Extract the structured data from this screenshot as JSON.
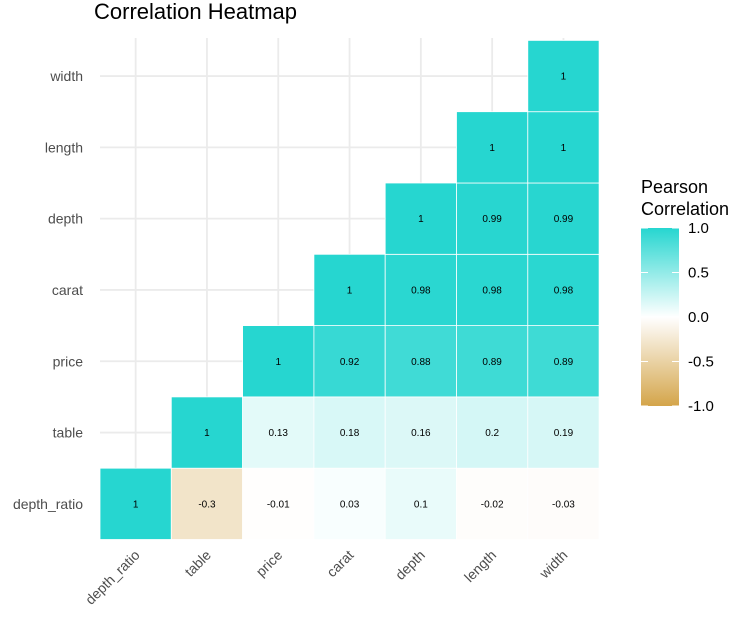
{
  "chart_data": {
    "type": "heatmap",
    "title": "Correlation Heatmap",
    "xlabel": "",
    "ylabel": "",
    "variables": [
      "depth_ratio",
      "table",
      "price",
      "carat",
      "depth",
      "length",
      "width"
    ],
    "x_categories": [
      "depth_ratio",
      "table",
      "price",
      "carat",
      "depth",
      "length",
      "width"
    ],
    "y_categories": [
      "depth_ratio",
      "table",
      "price",
      "carat",
      "depth",
      "length",
      "width"
    ],
    "matrix_layout": "lower-left triangle",
    "cells": [
      {
        "x": "depth_ratio",
        "y": "depth_ratio",
        "value": 1,
        "label": "1"
      },
      {
        "x": "table",
        "y": "depth_ratio",
        "value": -0.3,
        "label": "-0.3"
      },
      {
        "x": "price",
        "y": "depth_ratio",
        "value": -0.01,
        "label": "-0.01"
      },
      {
        "x": "carat",
        "y": "depth_ratio",
        "value": 0.03,
        "label": "0.03"
      },
      {
        "x": "depth",
        "y": "depth_ratio",
        "value": 0.1,
        "label": "0.1"
      },
      {
        "x": "length",
        "y": "depth_ratio",
        "value": -0.02,
        "label": "-0.02"
      },
      {
        "x": "width",
        "y": "depth_ratio",
        "value": -0.03,
        "label": "-0.03"
      },
      {
        "x": "table",
        "y": "table",
        "value": 1,
        "label": "1"
      },
      {
        "x": "price",
        "y": "table",
        "value": 0.13,
        "label": "0.13"
      },
      {
        "x": "carat",
        "y": "table",
        "value": 0.18,
        "label": "0.18"
      },
      {
        "x": "depth",
        "y": "table",
        "value": 0.16,
        "label": "0.16"
      },
      {
        "x": "length",
        "y": "table",
        "value": 0.2,
        "label": "0.2"
      },
      {
        "x": "width",
        "y": "table",
        "value": 0.19,
        "label": "0.19"
      },
      {
        "x": "price",
        "y": "price",
        "value": 1,
        "label": "1"
      },
      {
        "x": "carat",
        "y": "price",
        "value": 0.92,
        "label": "0.92"
      },
      {
        "x": "depth",
        "y": "price",
        "value": 0.88,
        "label": "0.88"
      },
      {
        "x": "length",
        "y": "price",
        "value": 0.89,
        "label": "0.89"
      },
      {
        "x": "width",
        "y": "price",
        "value": 0.89,
        "label": "0.89"
      },
      {
        "x": "carat",
        "y": "carat",
        "value": 1,
        "label": "1"
      },
      {
        "x": "depth",
        "y": "carat",
        "value": 0.98,
        "label": "0.98"
      },
      {
        "x": "length",
        "y": "carat",
        "value": 0.98,
        "label": "0.98"
      },
      {
        "x": "width",
        "y": "carat",
        "value": 0.98,
        "label": "0.98"
      },
      {
        "x": "depth",
        "y": "depth",
        "value": 1,
        "label": "1"
      },
      {
        "x": "length",
        "y": "depth",
        "value": 0.99,
        "label": "0.99"
      },
      {
        "x": "width",
        "y": "depth",
        "value": 0.99,
        "label": "0.99"
      },
      {
        "x": "length",
        "y": "length",
        "value": 1,
        "label": "1"
      },
      {
        "x": "width",
        "y": "length",
        "value": 1,
        "label": "1"
      },
      {
        "x": "width",
        "y": "width",
        "value": 1,
        "label": "1"
      }
    ],
    "legend": {
      "title": [
        "Pearson",
        "Correlation"
      ],
      "placement": "right",
      "range": [
        -1,
        1
      ],
      "ticks": [
        1.0,
        0.5,
        0.0,
        -0.5,
        -1.0
      ],
      "tick_labels": [
        "1.0",
        "0.5",
        "0.0",
        "-0.5",
        "-1.0"
      ]
    },
    "color_scale": {
      "low": "#d4a54a",
      "mid": "#ffffff",
      "high": "#26d6d0"
    },
    "grid": true
  }
}
